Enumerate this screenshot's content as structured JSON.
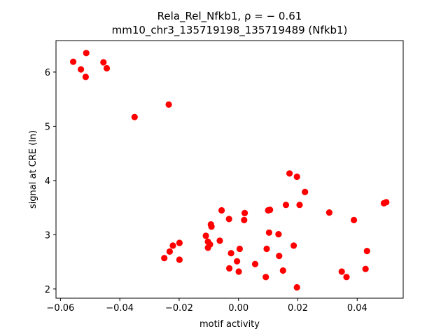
{
  "chart_data": {
    "type": "scatter",
    "title_line1": "Rela_Rel_Nfkb1, ρ = − 0.61",
    "title_line2": "mm10_chr3_135719198_135719489 (Nfkb1)",
    "xlabel": "motif activity",
    "ylabel": "signal at CRE (ln)",
    "xlim": [
      -0.0615,
      0.0555
    ],
    "ylim": [
      1.83,
      6.58
    ],
    "xticks": [
      -0.06,
      -0.04,
      -0.02,
      0.0,
      0.02,
      0.04
    ],
    "xtick_labels": [
      "−0.06",
      "−0.04",
      "−0.02",
      "0.00",
      "0.02",
      "0.04"
    ],
    "yticks": [
      2,
      3,
      4,
      5,
      6
    ],
    "ytick_labels": [
      "2",
      "3",
      "4",
      "5",
      "6"
    ],
    "grid": false,
    "marker_color": "#ff0000",
    "points": [
      {
        "x": -0.0557,
        "y": 6.19
      },
      {
        "x": -0.0531,
        "y": 6.05
      },
      {
        "x": -0.0513,
        "y": 6.35
      },
      {
        "x": -0.0515,
        "y": 5.91
      },
      {
        "x": -0.0455,
        "y": 6.18
      },
      {
        "x": -0.0444,
        "y": 6.07
      },
      {
        "x": -0.035,
        "y": 5.17
      },
      {
        "x": -0.0235,
        "y": 5.4
      },
      {
        "x": -0.025,
        "y": 2.57
      },
      {
        "x": -0.0232,
        "y": 2.69
      },
      {
        "x": -0.0221,
        "y": 2.8
      },
      {
        "x": -0.0199,
        "y": 2.85
      },
      {
        "x": -0.0199,
        "y": 2.54
      },
      {
        "x": -0.011,
        "y": 2.98
      },
      {
        "x": -0.0103,
        "y": 2.87
      },
      {
        "x": -0.0103,
        "y": 2.76
      },
      {
        "x": -0.0096,
        "y": 2.82
      },
      {
        "x": -0.0093,
        "y": 3.19
      },
      {
        "x": -0.0091,
        "y": 3.15
      },
      {
        "x": -0.0063,
        "y": 2.89
      },
      {
        "x": -0.0057,
        "y": 3.45
      },
      {
        "x": -0.0032,
        "y": 3.29
      },
      {
        "x": -0.0031,
        "y": 2.38
      },
      {
        "x": -0.0025,
        "y": 2.66
      },
      {
        "x": -0.0005,
        "y": 2.51
      },
      {
        "x": 0.0001,
        "y": 2.32
      },
      {
        "x": 0.0004,
        "y": 2.74
      },
      {
        "x": 0.0019,
        "y": 3.27
      },
      {
        "x": 0.0021,
        "y": 3.4
      },
      {
        "x": 0.0056,
        "y": 2.46
      },
      {
        "x": 0.0092,
        "y": 2.22
      },
      {
        "x": 0.0095,
        "y": 2.74
      },
      {
        "x": 0.01,
        "y": 3.45
      },
      {
        "x": 0.0103,
        "y": 3.04
      },
      {
        "x": 0.0106,
        "y": 3.46
      },
      {
        "x": 0.0135,
        "y": 3.01
      },
      {
        "x": 0.0137,
        "y": 2.61
      },
      {
        "x": 0.015,
        "y": 2.34
      },
      {
        "x": 0.016,
        "y": 3.55
      },
      {
        "x": 0.0172,
        "y": 4.13
      },
      {
        "x": 0.0186,
        "y": 2.8
      },
      {
        "x": 0.0197,
        "y": 4.07
      },
      {
        "x": 0.0197,
        "y": 2.03
      },
      {
        "x": 0.0206,
        "y": 3.55
      },
      {
        "x": 0.0224,
        "y": 3.79
      },
      {
        "x": 0.0306,
        "y": 3.41
      },
      {
        "x": 0.0348,
        "y": 2.32
      },
      {
        "x": 0.0364,
        "y": 2.22
      },
      {
        "x": 0.0389,
        "y": 3.27
      },
      {
        "x": 0.0428,
        "y": 2.37
      },
      {
        "x": 0.0433,
        "y": 2.7
      },
      {
        "x": 0.049,
        "y": 3.58
      },
      {
        "x": 0.0498,
        "y": 3.6
      }
    ]
  }
}
